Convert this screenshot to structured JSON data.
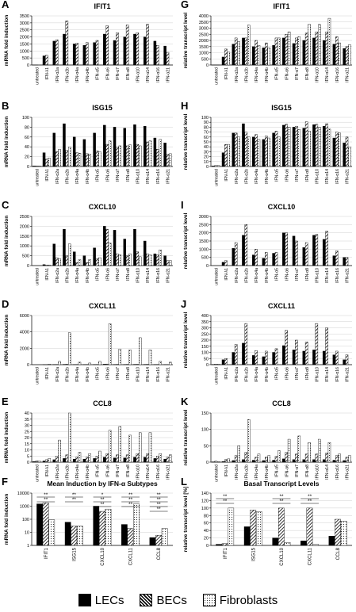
{
  "legend": {
    "items": [
      {
        "label": "LECs",
        "fill": "solid"
      },
      {
        "label": "BECs",
        "fill": "hatch"
      },
      {
        "label": "Fibroblasts",
        "fill": "dots"
      }
    ]
  },
  "categories": [
    "untreated",
    "IFN-λ1",
    "IFN-α2a",
    "IFN-α2b",
    "IFN-α4a",
    "IFN-α4b",
    "IFN-α5",
    "IFN-α6",
    "IFN-α7",
    "IFN-α8",
    "IFN-α10",
    "IFN-α14",
    "IFN-α16",
    "IFN-α21"
  ],
  "series_names": [
    "LECs",
    "BECs",
    "Fibroblasts"
  ],
  "chart_data": [
    {
      "panel": "A",
      "title": "IFIT1",
      "type": "bar",
      "ylabel": "mRNA fold induction",
      "ylim": [
        0,
        3500
      ],
      "yticks": [
        0,
        500,
        1000,
        1500,
        2000,
        2500,
        3000,
        3500
      ],
      "series": [
        {
          "values": [
            1,
            650,
            1700,
            2200,
            1500,
            1400,
            1600,
            2200,
            1750,
            2000,
            2200,
            2000,
            1700,
            1350
          ]
        },
        {
          "values": [
            1,
            700,
            1800,
            3150,
            1550,
            1600,
            1750,
            2800,
            2300,
            2850,
            2300,
            2900,
            1400,
            900
          ]
        },
        {
          "values": [
            0,
            0,
            0,
            0,
            0,
            0,
            0,
            0,
            0,
            0,
            0,
            0,
            0,
            0
          ]
        }
      ]
    },
    {
      "panel": "B",
      "title": "ISG15",
      "type": "bar",
      "ylabel": "mRNA fold induction",
      "ylim": [
        0,
        100
      ],
      "yticks": [
        0,
        20,
        40,
        60,
        80,
        100
      ],
      "series": [
        {
          "values": [
            1,
            28,
            68,
            87,
            60,
            55,
            68,
            84,
            80,
            78,
            85,
            82,
            58,
            48
          ]
        },
        {
          "values": [
            1,
            15,
            30,
            33,
            28,
            26,
            32,
            45,
            40,
            42,
            45,
            50,
            35,
            25
          ]
        },
        {
          "values": [
            1,
            17,
            35,
            40,
            27,
            25,
            30,
            52,
            42,
            44,
            42,
            52,
            55,
            26
          ]
        }
      ]
    },
    {
      "panel": "C",
      "title": "CXCL10",
      "type": "bar",
      "ylabel": "mRNA fold induction",
      "ylim": [
        0,
        2500
      ],
      "yticks": [
        0,
        500,
        1000,
        1500,
        2000,
        2500
      ],
      "series": [
        {
          "values": [
            0,
            50,
            1100,
            1850,
            700,
            500,
            900,
            2000,
            1800,
            1350,
            1850,
            1250,
            600,
            500
          ]
        },
        {
          "values": [
            0,
            30,
            400,
            500,
            150,
            150,
            350,
            1850,
            600,
            500,
            700,
            600,
            550,
            250
          ]
        },
        {
          "values": [
            0,
            20,
            350,
            1100,
            300,
            300,
            400,
            1150,
            550,
            600,
            450,
            550,
            800,
            250
          ]
        }
      ]
    },
    {
      "panel": "D",
      "title": "CXCL11",
      "type": "bar",
      "ylabel": "mRNA fold induction",
      "ylim": [
        0,
        6000
      ],
      "yticks": [
        0,
        2000,
        4000,
        6000
      ],
      "series": [
        {
          "values": [
            0,
            5,
            20,
            40,
            15,
            15,
            25,
            60,
            30,
            30,
            40,
            35,
            20,
            10
          ]
        },
        {
          "values": [
            0,
            5,
            30,
            60,
            20,
            20,
            30,
            80,
            40,
            40,
            50,
            45,
            30,
            15
          ]
        },
        {
          "values": [
            0,
            60,
            400,
            3900,
            300,
            200,
            400,
            5000,
            1900,
            1800,
            3300,
            1800,
            400,
            300
          ]
        }
      ]
    },
    {
      "panel": "E",
      "title": "CCL8",
      "type": "bar",
      "ylabel": "mRNA fold induction",
      "ylim": [
        0,
        40
      ],
      "yticks": [
        0,
        5,
        10,
        15,
        20,
        25,
        30,
        35,
        40
      ],
      "series": [
        {
          "values": [
            0.5,
            1,
            2,
            3,
            2.5,
            2.5,
            3,
            4,
            3.5,
            3.5,
            4,
            4,
            3,
            2.5
          ]
        },
        {
          "values": [
            1,
            2,
            5,
            6,
            4,
            4,
            5,
            7,
            6,
            6,
            7,
            7,
            5,
            4
          ]
        },
        {
          "values": [
            1,
            3,
            18,
            41,
            8,
            7,
            9,
            26,
            29,
            22,
            24,
            24,
            7,
            6
          ]
        }
      ]
    },
    {
      "panel": "G",
      "title": "IFIT1",
      "type": "bar",
      "ylabel": "relative transcript level",
      "ylim": [
        0,
        4000
      ],
      "yticks": [
        0,
        500,
        1000,
        1500,
        2000,
        2500,
        3000,
        3500,
        4000
      ],
      "series": [
        {
          "values": [
            1,
            650,
            1700,
            2200,
            1500,
            1400,
            1600,
            2200,
            1750,
            2000,
            2200,
            2000,
            1700,
            1350
          ]
        },
        {
          "values": [
            1,
            1300,
            2200,
            2200,
            2000,
            1800,
            2200,
            2500,
            2200,
            2600,
            2700,
            2700,
            2300,
            1500
          ]
        },
        {
          "values": [
            1,
            1050,
            1900,
            3250,
            1600,
            1400,
            2200,
            2700,
            2300,
            3300,
            3300,
            3800,
            1800,
            1650
          ]
        }
      ]
    },
    {
      "panel": "H",
      "title": "ISG15",
      "type": "bar",
      "ylabel": "relative transcript level",
      "ylim": [
        0,
        100
      ],
      "yticks": [
        0,
        10,
        20,
        30,
        40,
        50,
        60,
        70,
        80,
        90,
        100
      ],
      "series": [
        {
          "values": [
            1,
            28,
            68,
            87,
            60,
            55,
            68,
            84,
            80,
            78,
            85,
            82,
            58,
            48
          ]
        },
        {
          "values": [
            2,
            45,
            68,
            70,
            65,
            62,
            72,
            86,
            82,
            91,
            86,
            87,
            70,
            60
          ]
        },
        {
          "values": [
            2,
            45,
            60,
            60,
            55,
            58,
            60,
            80,
            75,
            72,
            80,
            76,
            68,
            40
          ]
        }
      ]
    },
    {
      "panel": "I",
      "title": "CXCL10",
      "type": "bar",
      "ylabel": "relative transcript level",
      "ylim": [
        0,
        3000
      ],
      "yticks": [
        0,
        500,
        1000,
        1500,
        2000,
        2500,
        3000
      ],
      "series": [
        {
          "values": [
            0,
            200,
            1050,
            1850,
            650,
            450,
            750,
            2000,
            1800,
            1100,
            1850,
            1600,
            600,
            500
          ]
        },
        {
          "values": [
            0,
            300,
            1400,
            2500,
            1000,
            800,
            800,
            2000,
            1500,
            1400,
            1900,
            2100,
            900,
            500
          ]
        },
        {
          "values": [
            0,
            0,
            0,
            0,
            0,
            0,
            0,
            0,
            0,
            0,
            0,
            0,
            0,
            0
          ]
        }
      ]
    },
    {
      "panel": "J",
      "title": "CXCL11",
      "type": "bar",
      "ylabel": "relative transcript level",
      "ylim": [
        0,
        400
      ],
      "yticks": [
        0,
        50,
        100,
        150,
        200,
        250,
        300,
        350,
        400
      ],
      "series": [
        {
          "values": [
            2,
            40,
            100,
            175,
            75,
            65,
            100,
            155,
            120,
            110,
            120,
            110,
            80,
            40
          ]
        },
        {
          "values": [
            5,
            50,
            165,
            335,
            115,
            110,
            130,
            280,
            200,
            185,
            335,
            300,
            110,
            80
          ]
        },
        {
          "values": [
            5,
            0,
            0,
            0,
            0,
            0,
            0,
            0,
            0,
            0,
            0,
            0,
            0,
            0
          ]
        }
      ]
    },
    {
      "panel": "K",
      "title": "CCL8",
      "type": "bar",
      "ylabel": "relative transcript level",
      "ylim": [
        0,
        150
      ],
      "yticks": [
        0,
        50,
        100,
        150
      ],
      "series": [
        {
          "values": [
            1,
            2,
            5,
            8,
            6,
            5,
            6,
            10,
            8,
            8,
            8,
            8,
            6,
            5
          ]
        },
        {
          "values": [
            3,
            8,
            20,
            30,
            15,
            15,
            18,
            30,
            25,
            25,
            25,
            28,
            20,
            15
          ]
        },
        {
          "values": [
            2,
            10,
            50,
            130,
            25,
            20,
            35,
            70,
            80,
            60,
            70,
            60,
            25,
            20
          ]
        }
      ]
    },
    {
      "panel": "F",
      "title": "Mean Induction by IFN-α Subtypes",
      "type": "bar",
      "ylabel": "mRNA fold induction",
      "yscale": "log",
      "ylim": [
        1,
        10000
      ],
      "ytick_labels": [
        "1",
        "10",
        "100",
        "1000",
        "10000"
      ],
      "categories": [
        "IFIT1",
        "ISG15",
        "CXCL10",
        "CXCL11",
        "CCL8"
      ],
      "series": [
        {
          "values": [
            1500,
            60,
            1000,
            40,
            4
          ]
        },
        {
          "values": [
            1800,
            30,
            400,
            20,
            6
          ]
        },
        {
          "values": [
            90,
            30,
            600,
            1500,
            20
          ]
        }
      ],
      "annotations": [
        "**",
        "**",
        "**",
        "**",
        "*",
        "**",
        "**",
        "**",
        "**",
        "**",
        "**",
        "**",
        "**",
        "**"
      ]
    },
    {
      "panel": "L",
      "title": "Basal Transcript Levels",
      "type": "bar",
      "ylabel": "relative transcript level [%]",
      "ylim": [
        0,
        140
      ],
      "yticks": [
        0,
        20,
        40,
        60,
        80,
        100,
        120,
        140
      ],
      "categories": [
        "IFIT1",
        "ISG15",
        "CXCL10",
        "CXCL11",
        "CCL8"
      ],
      "series": [
        {
          "values": [
            3,
            50,
            20,
            12,
            25
          ]
        },
        {
          "values": [
            5,
            95,
            100,
            100,
            70
          ]
        },
        {
          "values": [
            100,
            90,
            8,
            3,
            65
          ]
        }
      ],
      "annotations": [
        "**",
        "**",
        "**",
        "**",
        "**",
        "**"
      ]
    }
  ]
}
